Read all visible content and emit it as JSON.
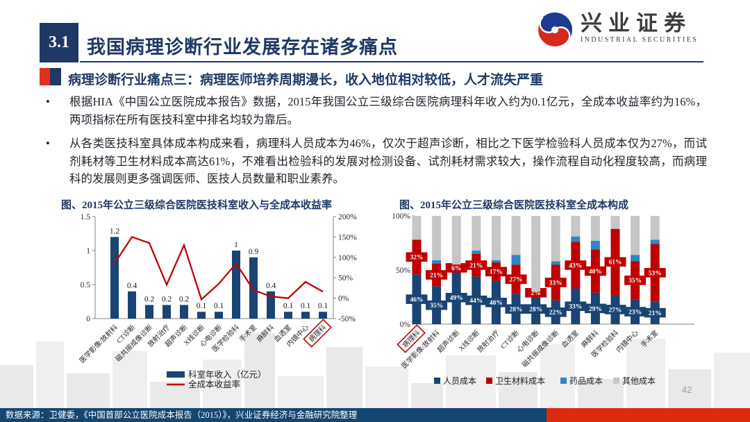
{
  "header": {
    "section_no": "3.1",
    "title": "我国病理诊断行业发展存在诸多痛点",
    "logo_cn": "兴业证券",
    "logo_en": "INDUSTRIAL SECURITIES"
  },
  "subtitle": "病理诊断行业痛点三：病理医师培养周期漫长，收入地位相对较低，人才流失严重",
  "bullets": [
    "根据HIA《中国公立医院成本报告》数据，2015年我国公立三级综合医院病理科年收入约为0.1亿元，全成本收益率约为16%，两项指标在所有医技科室中排名均较为靠后。",
    "从各类医技科室具体成本构成来看，病理科人员成本为46%，仅次于超声诊断，相比之下医学检验科人员成本仅为27%，而试剂耗材等卫生材料成本高达61%，不难看出检验科的发展对检测设备、试剂耗材需求较大，操作流程自动化程度较高，而病理科的发展则更多强调医师、医技人员数量和职业素养。"
  ],
  "page_number": "42",
  "footer_source": "数据来源：卫健委，《中国首部公立医院成本报告（2015）》，兴业证券经济与金融研究院整理",
  "colors": {
    "navy": "#1F3864",
    "bar_navy": "#1A4473",
    "red": "#C00000",
    "light_blue": "#2E86C6",
    "gray": "#C6C6C6",
    "footer_blue": "#15466F",
    "footer_red": "#DD2B10",
    "highlight_box": "#C00000"
  },
  "chart_data": [
    {
      "type": "bar",
      "title": "图、2015年公立三级综合医院医技科室收入与全成本收益率",
      "categories": [
        "医学影像/放射科",
        "CT诊断",
        "磁共振成像诊断",
        "放射治疗",
        "超声诊断",
        "X线诊断",
        "心电诊断",
        "医学检验科",
        "手术室",
        "麻醉科",
        "血透室",
        "内镜中心",
        "病理科"
      ],
      "series": [
        {
          "name": "科室年收入（亿元）",
          "kind": "bar",
          "axis": "left",
          "values": [
            1.2,
            0.4,
            0.2,
            0.2,
            0.2,
            0.1,
            0.1,
            1,
            0.9,
            0.4,
            0.1,
            0.1,
            0.1
          ]
        },
        {
          "name": "全成本收益率",
          "kind": "line",
          "axis": "right",
          "values": [
            85,
            150,
            135,
            33,
            130,
            -3,
            35,
            85,
            20,
            4,
            0,
            40,
            16
          ]
        }
      ],
      "left_axis": {
        "ticks": [
          "0",
          "0.5",
          "1",
          "1.5"
        ],
        "range": [
          0,
          1.5
        ]
      },
      "right_axis": {
        "ticks": [
          "-50%",
          "0%",
          "50%",
          "100%",
          "150%",
          "200%"
        ],
        "range": [
          -50,
          200
        ]
      },
      "highlight_category": "病理科",
      "legend_position": "bottom"
    },
    {
      "type": "bar",
      "subtype": "stacked-100",
      "title": "图、2015年公立三级综合医院医技科室全成本构成",
      "categories": [
        "病理科",
        "医学影像/放射科",
        "超声诊断",
        "X线诊断",
        "放射治疗",
        "CT诊断",
        "心电诊断",
        "磁共振成像诊断",
        "血透室",
        "麻醉科",
        "医学检验科",
        "内镜中心",
        "手术室"
      ],
      "series": [
        {
          "name": "人员成本",
          "values": [
            46,
            35,
            49,
            44,
            40,
            28,
            28,
            22,
            33,
            29,
            27,
            23,
            21
          ],
          "labeled": true
        },
        {
          "name": "卫生材料成本",
          "values": [
            32,
            21,
            6,
            21,
            17,
            27,
            2,
            33,
            43,
            40,
            61,
            35,
            53
          ],
          "labeled": true
        },
        {
          "name": "药品成本",
          "values": [
            0,
            3,
            0,
            3,
            2,
            9,
            0,
            3,
            5,
            8,
            0,
            6,
            4
          ],
          "labeled": false
        },
        {
          "name": "其他成本",
          "values": [
            22,
            41,
            45,
            32,
            41,
            36,
            70,
            42,
            19,
            23,
            12,
            36,
            22
          ],
          "labeled": false
        }
      ],
      "y_axis": {
        "ticks": [
          "0%",
          "50%",
          "100%"
        ],
        "range": [
          0,
          100
        ]
      },
      "highlight_category": "病理科",
      "legend_position": "bottom"
    }
  ]
}
